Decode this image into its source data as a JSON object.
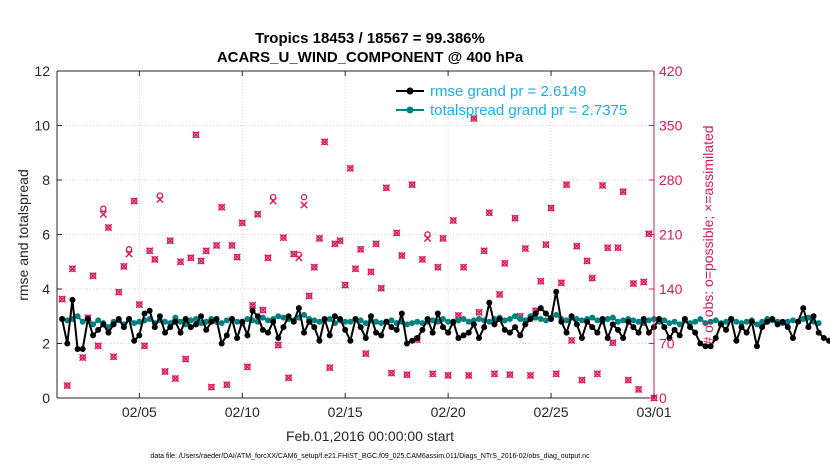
{
  "chart_data": {
    "type": "line",
    "title_line1": "Tropics 18453 / 18567 = 99.386%",
    "title_line2": "ACARS_U_WIND_COMPONENT @ 400 hPa",
    "xlabel": "Feb.01,2016 00:00:00 start",
    "ylabel_left": "rmse and totalspread",
    "ylabel_right": "# of obs: o=possible; ×=assimilated",
    "footnote": "data file: /Users/raeder/DAI/ATM_forcXX/CAM6_setup/f.e21.FHIST_BGC.f09_025.CAM6assim.011/Diags_NTrS_2016-02/obs_diag_output.nc",
    "xlim": [
      1,
      30
    ],
    "ylim_left": [
      0,
      12
    ],
    "ylim_right": [
      0,
      420
    ],
    "x_ticks": [
      5,
      10,
      15,
      20,
      25,
      30
    ],
    "x_tick_labels": [
      "02/05",
      "02/10",
      "02/15",
      "02/20",
      "02/25",
      "03/01"
    ],
    "y_left_ticks": [
      "0",
      "2",
      "4",
      "6",
      "8",
      "10",
      "12"
    ],
    "y_right_ticks": [
      "0",
      "70",
      "140",
      "210",
      "280",
      "350",
      "420"
    ],
    "colors": {
      "rmse": "#000000",
      "spread": "#008080",
      "obs": "#d7195a",
      "legend_text": "#1ab0e8",
      "right_axis": "#d7195a"
    },
    "legend": {
      "location": "top-right",
      "entries": [
        "rmse grand pr = 2.6149",
        "totalspread grand pr = 2.7375"
      ]
    },
    "series": [
      {
        "name": "rmse",
        "x_start": 1.25,
        "x_step": 0.25,
        "values": [
          2.9,
          2.0,
          3.6,
          1.8,
          1.8,
          2.9,
          2.3,
          2.5,
          2.7,
          2.4,
          2.7,
          2.9,
          2.6,
          2.9,
          2.1,
          2.3,
          3.1,
          3.2,
          2.6,
          3.0,
          2.4,
          2.6,
          2.8,
          2.4,
          2.9,
          2.6,
          2.7,
          3.0,
          2.5,
          2.8,
          2.9,
          2.0,
          2.3,
          2.9,
          2.2,
          2.8,
          2.3,
          3.2,
          3.0,
          2.5,
          2.4,
          2.8,
          2.2,
          2.6,
          3.0,
          2.8,
          3.3,
          2.4,
          2.8,
          2.6,
          2.1,
          2.9,
          2.3,
          3.0,
          2.9,
          2.5,
          2.1,
          2.9,
          2.6,
          2.2,
          3.0,
          2.4,
          2.3,
          2.8,
          2.6,
          2.5,
          3.1,
          2.0,
          2.1,
          2.2,
          2.5,
          2.9,
          2.4,
          3.1,
          2.6,
          2.4,
          2.8,
          2.2,
          2.3,
          2.4,
          2.7,
          2.2,
          2.6,
          3.5,
          2.7,
          2.9,
          2.5,
          2.4,
          2.6,
          2.3,
          2.7,
          2.9,
          3.1,
          3.3,
          3.1,
          2.9,
          3.9,
          2.8,
          2.4,
          3.0,
          2.7,
          2.2,
          2.8,
          2.6,
          2.4,
          2.9,
          2.2,
          2.7,
          2.5,
          2.2,
          2.8,
          2.6,
          2.4,
          2.9,
          2.4,
          2.6,
          2.9,
          2.6,
          2.2,
          2.5,
          2.3,
          2.9,
          2.6,
          2.4,
          2.0,
          1.9,
          1.9,
          2.2,
          2.7,
          2.5,
          2.9,
          2.1,
          2.6,
          2.4,
          2.8,
          1.9,
          2.6,
          2.8,
          2.9,
          2.7,
          2.8,
          2.6,
          2.2,
          2.8,
          3.3,
          2.6,
          3.0,
          2.4,
          2.2,
          2.1
        ]
      },
      {
        "name": "totalspread",
        "x_start": 1.25,
        "x_step": 0.25,
        "values": [
          2.9,
          2.85,
          2.9,
          3.0,
          2.8,
          2.9,
          2.7,
          2.85,
          2.75,
          2.6,
          2.8,
          2.85,
          2.7,
          2.9,
          2.75,
          2.8,
          2.85,
          2.9,
          2.75,
          2.85,
          2.8,
          2.75,
          2.95,
          2.8,
          2.7,
          2.85,
          2.9,
          2.75,
          2.8,
          2.9,
          2.8,
          2.75,
          2.85,
          2.9,
          2.8,
          2.75,
          2.9,
          2.85,
          2.8,
          2.95,
          2.85,
          2.9,
          3.0,
          2.95,
          2.9,
          2.85,
          2.95,
          3.05,
          2.9,
          2.85,
          2.8,
          2.85,
          2.9,
          2.75,
          2.85,
          2.8,
          2.8,
          2.9,
          2.85,
          2.75,
          2.85,
          2.8,
          2.75,
          2.8,
          2.85,
          2.75,
          2.8,
          2.7,
          2.75,
          2.8,
          2.75,
          2.8,
          2.85,
          2.8,
          2.9,
          2.8,
          2.75,
          2.85,
          2.9,
          2.8,
          2.85,
          2.9,
          2.85,
          2.8,
          2.9,
          2.95,
          2.85,
          2.9,
          3.0,
          2.9,
          2.85,
          3.0,
          2.95,
          2.9,
          2.85,
          2.95,
          3.05,
          2.9,
          2.85,
          2.95,
          2.9,
          2.85,
          2.9,
          2.95,
          2.85,
          2.8,
          2.9,
          2.95,
          2.8,
          2.85,
          2.9,
          2.85,
          2.8,
          2.75,
          2.85,
          2.9,
          2.8,
          2.85,
          2.75,
          2.8,
          2.7,
          2.85,
          2.75,
          2.8,
          2.9,
          2.75,
          2.8,
          2.85,
          2.75,
          2.8,
          2.9,
          2.8,
          2.75,
          2.8,
          2.85,
          2.7,
          2.8,
          2.9,
          2.85,
          2.8,
          2.75,
          2.8,
          2.85,
          2.8,
          2.9,
          2.95,
          2.8,
          2.75
        ]
      },
      {
        "name": "obs_possible",
        "points": [
          [
            1.25,
            127
          ],
          [
            1.5,
            16
          ],
          [
            1.75,
            166
          ],
          [
            2.25,
            52
          ],
          [
            2.5,
            103
          ],
          [
            2.75,
            157
          ],
          [
            3.0,
            67
          ],
          [
            3.25,
            243
          ],
          [
            3.5,
            219
          ],
          [
            3.75,
            53
          ],
          [
            4.0,
            136
          ],
          [
            4.25,
            169
          ],
          [
            4.5,
            191
          ],
          [
            4.75,
            253
          ],
          [
            5.0,
            120
          ],
          [
            5.25,
            67
          ],
          [
            5.5,
            189
          ],
          [
            5.75,
            178
          ],
          [
            6.0,
            260
          ],
          [
            6.25,
            34
          ],
          [
            6.5,
            202
          ],
          [
            6.75,
            25
          ],
          [
            7.0,
            175
          ],
          [
            7.25,
            50
          ],
          [
            7.5,
            180
          ],
          [
            7.75,
            338
          ],
          [
            8.0,
            176
          ],
          [
            8.25,
            189
          ],
          [
            8.5,
            14
          ],
          [
            8.75,
            196
          ],
          [
            9.0,
            245
          ],
          [
            9.25,
            17
          ],
          [
            9.5,
            196
          ],
          [
            9.75,
            181
          ],
          [
            10.0,
            225
          ],
          [
            10.25,
            40
          ],
          [
            10.5,
            119
          ],
          [
            10.75,
            236
          ],
          [
            11.0,
            113
          ],
          [
            11.25,
            180
          ],
          [
            11.5,
            258
          ],
          [
            11.75,
            68
          ],
          [
            12.0,
            206
          ],
          [
            12.25,
            26
          ],
          [
            12.5,
            185
          ],
          [
            12.75,
            184
          ],
          [
            13.0,
            258
          ],
          [
            13.25,
            131
          ],
          [
            13.5,
            168
          ],
          [
            13.75,
            205
          ],
          [
            14.0,
            329
          ],
          [
            14.25,
            39
          ],
          [
            14.5,
            198
          ],
          [
            14.75,
            202
          ],
          [
            15.0,
            145
          ],
          [
            15.25,
            295
          ],
          [
            15.5,
            166
          ],
          [
            15.75,
            191
          ],
          [
            16.0,
            57
          ],
          [
            16.25,
            162
          ],
          [
            16.5,
            198
          ],
          [
            16.75,
            141
          ],
          [
            17.0,
            270
          ],
          [
            17.25,
            32
          ],
          [
            17.5,
            212
          ],
          [
            17.75,
            183
          ],
          [
            18.0,
            30
          ],
          [
            18.25,
            274
          ],
          [
            18.5,
            75
          ],
          [
            18.75,
            178
          ],
          [
            19.0,
            210
          ],
          [
            19.25,
            31
          ],
          [
            19.5,
            168
          ],
          [
            19.75,
            205
          ],
          [
            20.0,
            29
          ],
          [
            20.25,
            228
          ],
          [
            20.5,
            106
          ],
          [
            20.75,
            168
          ],
          [
            21.0,
            29
          ],
          [
            21.25,
            359
          ],
          [
            21.5,
            110
          ],
          [
            21.75,
            189
          ],
          [
            22.0,
            238
          ],
          [
            22.25,
            31
          ],
          [
            22.5,
            133
          ],
          [
            22.75,
            173
          ],
          [
            23.0,
            30
          ],
          [
            23.25,
            231
          ],
          [
            23.5,
            105
          ],
          [
            23.75,
            192
          ],
          [
            24.0,
            29
          ],
          [
            24.25,
            112
          ],
          [
            24.5,
            150
          ],
          [
            24.75,
            197
          ],
          [
            25.0,
            244
          ],
          [
            25.25,
            31
          ],
          [
            25.5,
            148
          ],
          [
            25.75,
            274
          ],
          [
            26.0,
            74
          ],
          [
            26.25,
            195
          ],
          [
            26.5,
            23
          ],
          [
            26.75,
            176
          ],
          [
            27.0,
            154
          ],
          [
            27.25,
            31
          ],
          [
            27.5,
            273
          ],
          [
            27.75,
            193
          ],
          [
            28.0,
            71
          ],
          [
            28.25,
            193
          ],
          [
            28.5,
            265
          ],
          [
            28.75,
            23
          ],
          [
            29.0,
            147
          ],
          [
            29.25,
            11
          ],
          [
            29.5,
            149
          ],
          [
            29.75,
            211
          ],
          [
            30.0,
            0
          ]
        ]
      },
      {
        "name": "obs_assimilated",
        "points": [
          [
            1.25,
            127
          ],
          [
            1.5,
            16
          ],
          [
            1.75,
            166
          ],
          [
            2.25,
            52
          ],
          [
            2.5,
            103
          ],
          [
            2.75,
            157
          ],
          [
            3.0,
            67
          ],
          [
            3.25,
            236
          ],
          [
            3.5,
            219
          ],
          [
            3.75,
            53
          ],
          [
            4.0,
            136
          ],
          [
            4.25,
            169
          ],
          [
            4.5,
            185
          ],
          [
            4.75,
            253
          ],
          [
            5.0,
            120
          ],
          [
            5.25,
            67
          ],
          [
            5.5,
            189
          ],
          [
            5.75,
            178
          ],
          [
            6.0,
            255
          ],
          [
            6.25,
            34
          ],
          [
            6.5,
            202
          ],
          [
            6.75,
            25
          ],
          [
            7.0,
            175
          ],
          [
            7.25,
            50
          ],
          [
            7.5,
            180
          ],
          [
            7.75,
            338
          ],
          [
            8.0,
            176
          ],
          [
            8.25,
            189
          ],
          [
            8.5,
            14
          ],
          [
            8.75,
            196
          ],
          [
            9.0,
            245
          ],
          [
            9.25,
            17
          ],
          [
            9.5,
            196
          ],
          [
            9.75,
            181
          ],
          [
            10.0,
            225
          ],
          [
            10.25,
            40
          ],
          [
            10.5,
            119
          ],
          [
            10.75,
            236
          ],
          [
            11.0,
            113
          ],
          [
            11.25,
            180
          ],
          [
            11.5,
            253
          ],
          [
            11.75,
            68
          ],
          [
            12.0,
            206
          ],
          [
            12.25,
            26
          ],
          [
            12.5,
            185
          ],
          [
            12.75,
            180
          ],
          [
            13.0,
            248
          ],
          [
            13.25,
            131
          ],
          [
            13.5,
            168
          ],
          [
            13.75,
            205
          ],
          [
            14.0,
            329
          ],
          [
            14.25,
            39
          ],
          [
            14.5,
            198
          ],
          [
            14.75,
            202
          ],
          [
            15.0,
            145
          ],
          [
            15.25,
            295
          ],
          [
            15.5,
            166
          ],
          [
            15.75,
            191
          ],
          [
            16.0,
            57
          ],
          [
            16.25,
            162
          ],
          [
            16.5,
            198
          ],
          [
            16.75,
            141
          ],
          [
            17.0,
            270
          ],
          [
            17.25,
            32
          ],
          [
            17.5,
            212
          ],
          [
            17.75,
            183
          ],
          [
            18.0,
            30
          ],
          [
            18.25,
            274
          ],
          [
            18.5,
            75
          ],
          [
            18.75,
            178
          ],
          [
            19.0,
            205
          ],
          [
            19.25,
            31
          ],
          [
            19.5,
            168
          ],
          [
            19.75,
            205
          ],
          [
            20.0,
            29
          ],
          [
            20.25,
            228
          ],
          [
            20.5,
            106
          ],
          [
            20.75,
            168
          ],
          [
            21.0,
            29
          ],
          [
            21.25,
            359
          ],
          [
            21.5,
            110
          ],
          [
            21.75,
            189
          ],
          [
            22.0,
            238
          ],
          [
            22.25,
            31
          ],
          [
            22.5,
            133
          ],
          [
            22.75,
            173
          ],
          [
            23.0,
            30
          ],
          [
            23.25,
            231
          ],
          [
            23.5,
            105
          ],
          [
            23.75,
            192
          ],
          [
            24.0,
            29
          ],
          [
            24.25,
            112
          ],
          [
            24.5,
            150
          ],
          [
            24.75,
            197
          ],
          [
            25.0,
            244
          ],
          [
            25.25,
            31
          ],
          [
            25.5,
            148
          ],
          [
            25.75,
            274
          ],
          [
            26.0,
            74
          ],
          [
            26.25,
            195
          ],
          [
            26.5,
            23
          ],
          [
            26.75,
            176
          ],
          [
            27.0,
            154
          ],
          [
            27.25,
            31
          ],
          [
            27.5,
            273
          ],
          [
            27.75,
            193
          ],
          [
            28.0,
            71
          ],
          [
            28.25,
            193
          ],
          [
            28.5,
            265
          ],
          [
            28.75,
            23
          ],
          [
            29.0,
            147
          ],
          [
            29.25,
            11
          ],
          [
            29.5,
            149
          ],
          [
            29.75,
            211
          ],
          [
            30.0,
            0
          ]
        ]
      }
    ]
  }
}
